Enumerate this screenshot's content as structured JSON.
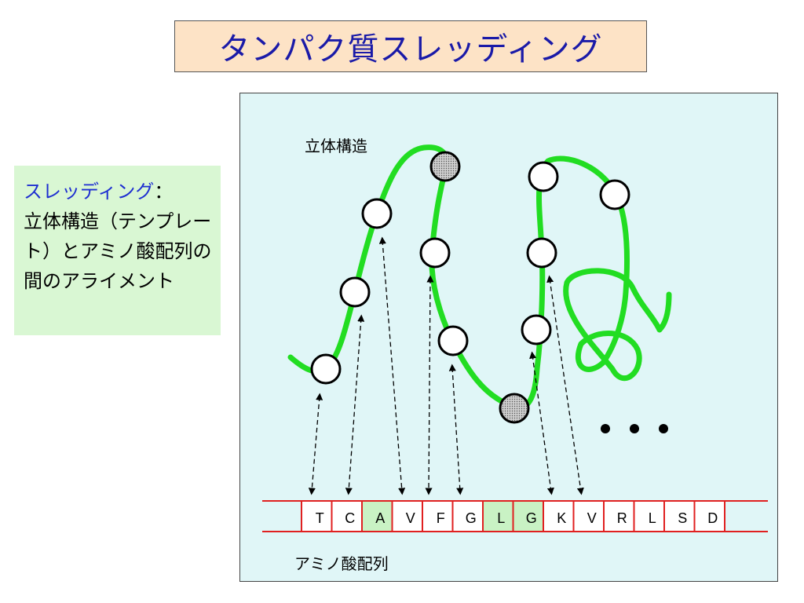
{
  "title": "タンパク質スレッディング",
  "definition": {
    "term": "スレッディング",
    "colon": "：",
    "body": "立体構造（テンプレート）とアミノ酸配列の間のアライメント"
  },
  "diagram": {
    "structure_label": "立体構造",
    "sequence_label": "アミノ酸配列",
    "sequence": [
      {
        "letter": "T",
        "highlight": false
      },
      {
        "letter": "C",
        "highlight": false
      },
      {
        "letter": "A",
        "highlight": true
      },
      {
        "letter": "V",
        "highlight": false
      },
      {
        "letter": "F",
        "highlight": false
      },
      {
        "letter": "G",
        "highlight": false
      },
      {
        "letter": "L",
        "highlight": true
      },
      {
        "letter": "G",
        "highlight": true
      },
      {
        "letter": "K",
        "highlight": false
      },
      {
        "letter": "V",
        "highlight": false
      },
      {
        "letter": "R",
        "highlight": false
      },
      {
        "letter": "L",
        "highlight": false
      },
      {
        "letter": "S",
        "highlight": false
      },
      {
        "letter": "D",
        "highlight": false
      }
    ],
    "colors": {
      "backbone": "#22dd22",
      "sequence_line": "#e02020",
      "highlight_cell": "#c9f2c4",
      "title_text": "#1a1aa8",
      "term_text": "#1e2fd1"
    }
  }
}
